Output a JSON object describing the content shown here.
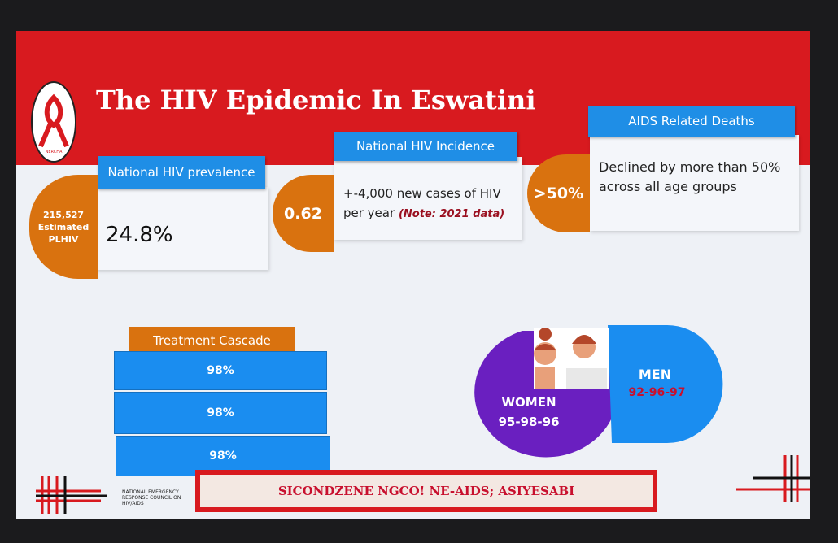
{
  "header": {
    "title": "The HIV Epidemic In Eswatini",
    "logo_text": "NERCHA"
  },
  "prevalence": {
    "label": "National HIV prevalence",
    "badge": [
      "215,527",
      "Estimated",
      "PLHIV"
    ],
    "value": "24.8%"
  },
  "incidence": {
    "label": "National HIV Incidence",
    "badge": "0.62",
    "text": "+-4,000 new cases of HIV per year",
    "note": "(Note: 2021 data)"
  },
  "deaths": {
    "label": "AIDS Related Deaths",
    "badge": ">50%",
    "text": "Declined by more than 50% across all age groups"
  },
  "cascade": {
    "title": "Treatment Cascade",
    "rows": [
      "98%",
      "98%",
      "98%"
    ]
  },
  "women": {
    "label": "WOMEN",
    "value": "95-98-96"
  },
  "men": {
    "label": "MEN",
    "value": "92-96-97"
  },
  "footer": {
    "slogan": "SICONDZENE NGCO! NE-AIDS; ASIYESABI",
    "org": "NATIONAL EMERGENCY RESPONSE COUNCIL ON HIV/AIDS"
  }
}
